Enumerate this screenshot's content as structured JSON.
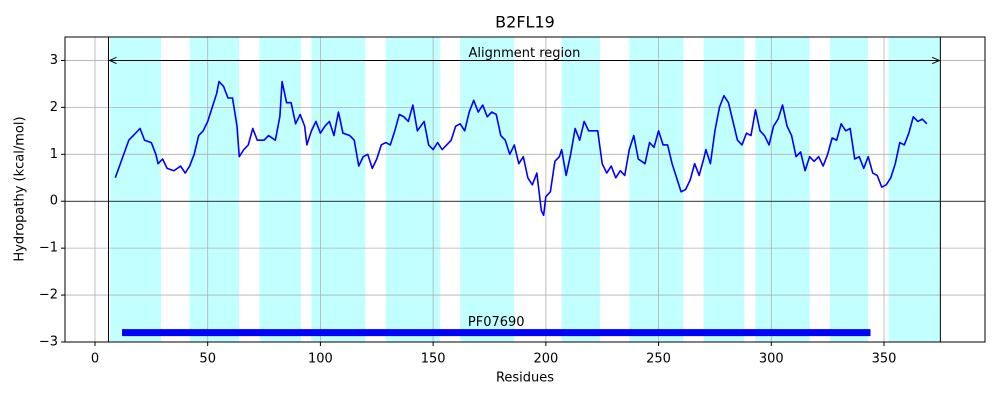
{
  "chart_data": {
    "type": "line",
    "title": "B2FL19",
    "x_label": "Residues",
    "y_label": "Hydropathy (kcal/mol)",
    "xlim": [
      -13.3,
      394.8
    ],
    "ylim": [
      -3,
      3.5
    ],
    "xticks": [
      0,
      50,
      100,
      150,
      200,
      250,
      300,
      350
    ],
    "yticks": [
      {
        "value": -3,
        "label": "−3"
      },
      {
        "value": -2,
        "label": "−2"
      },
      {
        "value": -1,
        "label": "−1"
      },
      0,
      1,
      2,
      3
    ],
    "grid": true,
    "color": "#0000ff",
    "x": [
      9,
      12,
      15,
      17,
      20,
      22,
      25,
      27,
      28,
      30,
      32,
      35,
      38,
      40,
      42,
      44,
      46,
      48,
      50,
      52,
      54,
      55,
      57,
      59,
      61,
      63,
      64,
      66,
      68,
      70,
      72,
      75,
      77,
      80,
      82,
      83,
      85,
      87,
      89,
      91,
      93,
      94,
      96,
      98,
      100,
      102,
      104,
      106,
      108,
      110,
      113,
      115,
      117,
      119,
      121,
      123,
      125,
      127,
      129,
      131,
      133,
      135,
      137,
      139,
      141,
      143,
      146,
      148,
      150,
      152,
      154,
      156,
      158,
      160,
      162,
      164,
      166,
      168,
      170,
      172,
      174,
      176,
      178,
      180,
      182,
      184,
      186,
      188,
      190,
      192,
      194,
      196,
      198,
      199,
      200,
      202,
      204,
      206,
      207,
      209,
      211,
      213,
      215,
      217,
      219,
      223,
      225,
      227,
      229,
      231,
      233,
      235,
      237,
      239,
      241,
      244,
      246,
      248,
      250,
      252,
      254,
      256,
      258,
      260,
      262,
      264,
      266,
      268,
      270,
      271,
      273,
      275,
      277,
      279,
      281,
      283,
      285,
      287,
      289,
      291,
      293,
      295,
      297,
      299,
      301,
      303,
      305,
      307,
      309,
      311,
      313,
      315,
      317,
      319,
      321,
      323,
      325,
      327,
      329,
      331,
      333,
      335,
      337,
      339,
      341,
      343,
      345,
      347,
      349,
      351,
      353,
      355,
      357,
      359,
      361,
      363,
      365,
      367,
      369
    ],
    "values": [
      0.5,
      0.9,
      1.3,
      1.4,
      1.55,
      1.3,
      1.25,
      1.0,
      0.8,
      0.9,
      0.7,
      0.65,
      0.75,
      0.6,
      0.75,
      1.0,
      1.4,
      1.5,
      1.7,
      2.0,
      2.3,
      2.55,
      2.45,
      2.2,
      2.2,
      1.6,
      0.95,
      1.1,
      1.2,
      1.55,
      1.3,
      1.3,
      1.4,
      1.3,
      1.8,
      2.55,
      2.1,
      2.1,
      1.65,
      1.85,
      1.6,
      1.2,
      1.5,
      1.7,
      1.45,
      1.6,
      1.7,
      1.4,
      1.9,
      1.45,
      1.4,
      1.3,
      0.75,
      0.95,
      1.0,
      0.7,
      0.9,
      1.2,
      1.25,
      1.2,
      1.5,
      1.85,
      1.8,
      1.7,
      2.05,
      1.5,
      1.7,
      1.2,
      1.1,
      1.25,
      1.1,
      1.2,
      1.3,
      1.6,
      1.65,
      1.5,
      1.9,
      2.15,
      1.9,
      2.05,
      1.8,
      1.9,
      1.85,
      1.4,
      1.3,
      1.0,
      1.2,
      0.8,
      0.95,
      0.5,
      0.35,
      0.6,
      -0.2,
      -0.3,
      0.1,
      0.2,
      0.85,
      0.95,
      1.1,
      0.55,
      1.0,
      1.55,
      1.3,
      1.7,
      1.5,
      1.5,
      0.8,
      0.6,
      0.75,
      0.5,
      0.65,
      0.55,
      1.1,
      1.4,
      0.9,
      0.8,
      1.25,
      1.15,
      1.5,
      1.2,
      1.2,
      0.8,
      0.5,
      0.2,
      0.25,
      0.45,
      0.8,
      0.55,
      0.9,
      1.1,
      0.8,
      1.5,
      2.0,
      2.25,
      2.1,
      1.7,
      1.3,
      1.2,
      1.45,
      1.4,
      1.95,
      1.5,
      1.4,
      1.2,
      1.6,
      1.75,
      2.05,
      1.6,
      1.4,
      0.95,
      1.05,
      0.65,
      0.95,
      0.85,
      0.95,
      0.75,
      1.0,
      1.35,
      1.3,
      1.65,
      1.5,
      1.55,
      0.9,
      0.95,
      0.7,
      0.95,
      0.6,
      0.55,
      0.3,
      0.35,
      0.5,
      0.8,
      1.25,
      1.2,
      1.45,
      1.8,
      1.7,
      1.75,
      1.65
    ],
    "shaded_regions": [
      [
        6.7,
        29.3
      ],
      [
        42,
        64
      ],
      [
        73,
        91.4
      ],
      [
        96,
        120
      ],
      [
        129,
        153
      ],
      [
        162,
        186
      ],
      [
        207,
        224
      ],
      [
        237,
        261
      ],
      [
        270,
        288
      ],
      [
        293,
        317
      ],
      [
        326,
        343
      ],
      [
        352,
        375
      ]
    ],
    "shade_color": "#c2ffff",
    "alignment": {
      "text": "Alignment region",
      "start": 6,
      "end": 375,
      "y": 3
    },
    "domain": {
      "label": "PF07690",
      "start": 12,
      "end": 344,
      "y": -2.8,
      "color": "#0000ff"
    }
  }
}
